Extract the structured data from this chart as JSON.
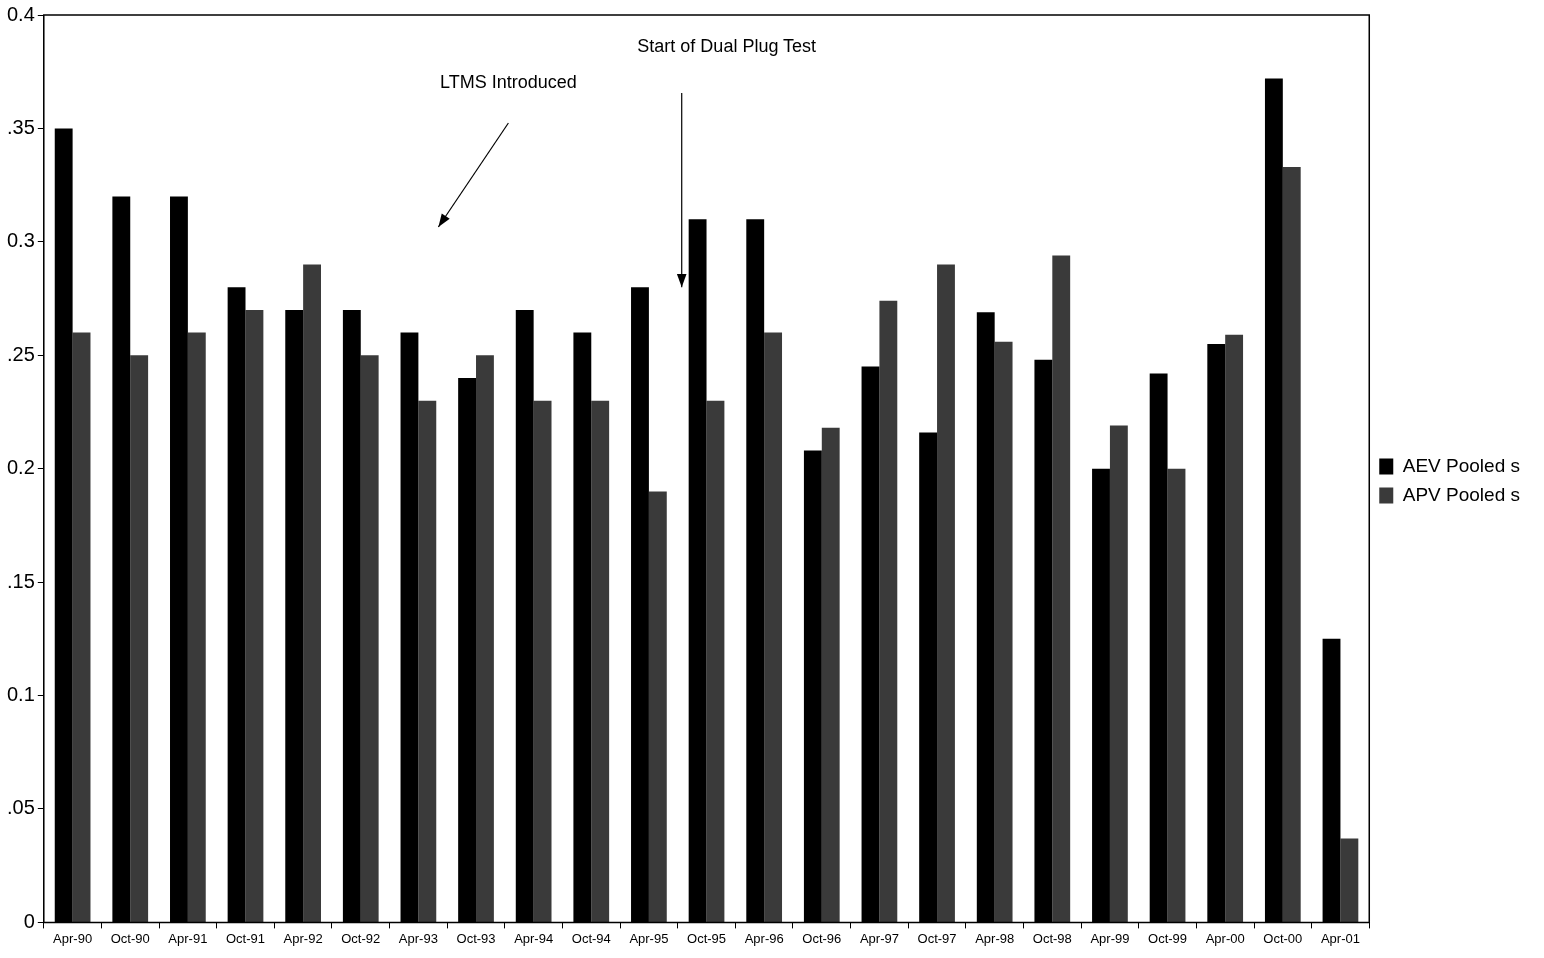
{
  "chart_data": {
    "type": "bar",
    "categories": [
      "Apr-90",
      "Oct-90",
      "Apr-91",
      "Oct-91",
      "Apr-92",
      "Oct-92",
      "Apr-93",
      "Oct-93",
      "Apr-94",
      "Oct-94",
      "Apr-95",
      "Oct-95",
      "Apr-96",
      "Oct-96",
      "Apr-97",
      "Oct-97",
      "Apr-98",
      "Oct-98",
      "Apr-99",
      "Oct-99",
      "Apr-00",
      "Oct-00",
      "Apr-01"
    ],
    "series": [
      {
        "name": "AEV Pooled s",
        "color": "#000000",
        "values": [
          0.35,
          0.32,
          0.32,
          0.28,
          0.27,
          0.27,
          0.26,
          0.24,
          0.27,
          0.26,
          0.28,
          0.31,
          0.31,
          0.208,
          0.245,
          0.216,
          0.269,
          0.248,
          0.2,
          0.242,
          0.255,
          0.372,
          0.125
        ]
      },
      {
        "name": "APV Pooled s",
        "color": "#3a3a3a",
        "values": [
          0.26,
          0.25,
          0.26,
          0.27,
          0.29,
          0.25,
          0.23,
          0.25,
          0.23,
          0.23,
          0.19,
          0.23,
          0.26,
          0.218,
          0.274,
          0.29,
          0.256,
          0.294,
          0.219,
          0.2,
          0.259,
          0.333,
          0.037
        ]
      }
    ],
    "ylim": [
      0,
      0.4
    ],
    "yticks": [
      0,
      {
        "value": 0.05,
        "label": ".05"
      },
      0.1,
      {
        "value": 0.15,
        "label": ".15"
      },
      0.2,
      {
        "value": 0.25,
        "label": ".25"
      },
      0.3,
      {
        "value": 0.35,
        "label": ".35"
      },
      0.4
    ],
    "grid": false,
    "legend": "right",
    "annotations": [
      "Start of Dual Plug Test",
      "LTMS Introduced"
    ]
  }
}
